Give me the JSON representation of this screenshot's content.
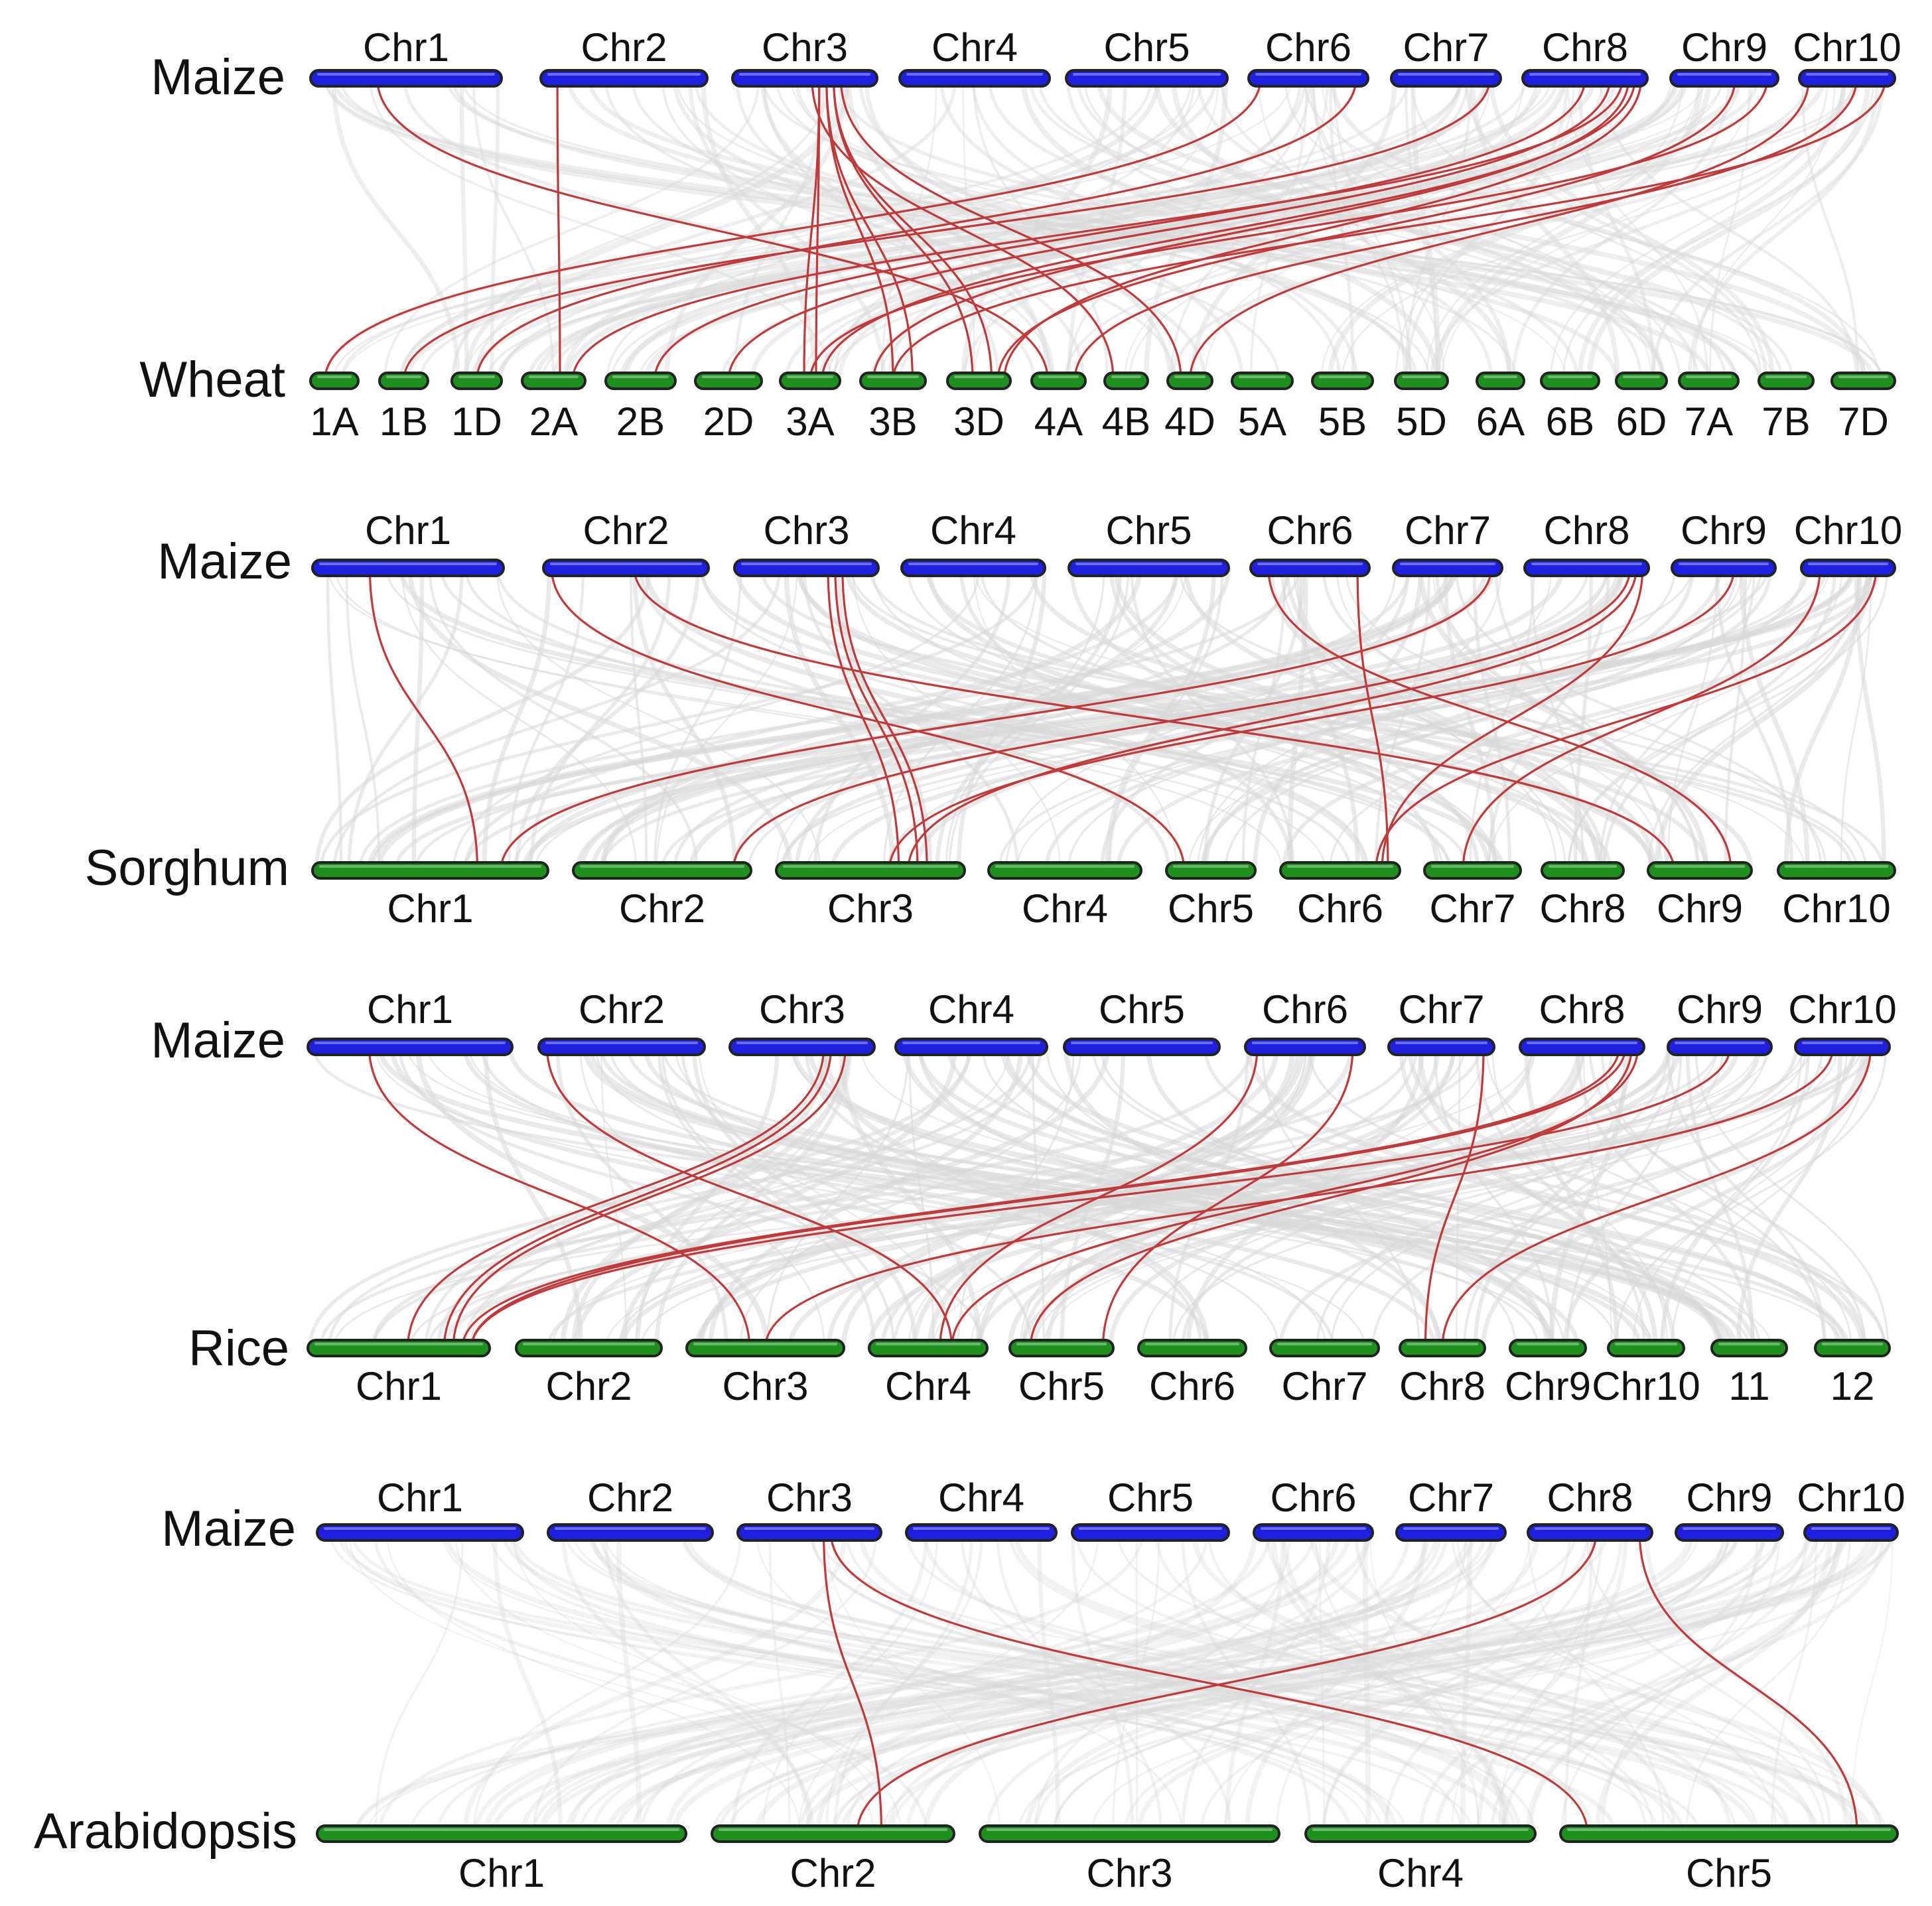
{
  "colors": {
    "maize_bar": "#1f1fe0",
    "other_bar": "#1f8f1f",
    "background_links": "#d9d9d9",
    "highlight_links": "#c0393b"
  },
  "panels": [
    {
      "id": "wheat",
      "top_species": "Maize",
      "bottom_species": "Wheat",
      "top_chromosomes": [
        "Chr1",
        "Chr2",
        "Chr3",
        "Chr4",
        "Chr5",
        "Chr6",
        "Chr7",
        "Chr8",
        "Chr9",
        "Chr10"
      ],
      "bottom_chromosomes": [
        "1A",
        "1B",
        "1D",
        "2A",
        "2B",
        "2D",
        "3A",
        "3B",
        "3D",
        "4A",
        "4B",
        "4D",
        "5A",
        "5B",
        "5D",
        "6A",
        "6B",
        "6D",
        "7A",
        "7B",
        "7D"
      ],
      "highlight_links": [
        [
          "Chr1",
          0.35,
          "4A",
          0.3
        ],
        [
          "Chr2",
          0.1,
          "2A",
          0.6
        ],
        [
          "Chr3",
          0.6,
          "3A",
          0.4
        ],
        [
          "Chr3",
          0.6,
          "3A",
          0.6
        ],
        [
          "Chr3",
          0.65,
          "3B",
          0.5
        ],
        [
          "Chr3",
          0.65,
          "3B",
          0.8
        ],
        [
          "Chr3",
          0.7,
          "3D",
          0.4
        ],
        [
          "Chr3",
          0.7,
          "3D",
          0.7
        ],
        [
          "Chr3",
          0.55,
          "4B",
          0.2
        ],
        [
          "Chr3",
          0.75,
          "4D",
          0.3
        ],
        [
          "Chr6",
          0.1,
          "1A",
          0.3
        ],
        [
          "Chr6",
          0.9,
          "1D",
          0.5
        ],
        [
          "Chr7",
          0.9,
          "1B",
          0.5
        ],
        [
          "Chr8",
          0.5,
          "2B",
          0.7
        ],
        [
          "Chr8",
          0.7,
          "2D",
          0.5
        ],
        [
          "Chr8",
          0.8,
          "2A",
          0.8
        ],
        [
          "Chr8",
          0.9,
          "3A",
          0.7
        ],
        [
          "Chr8",
          0.85,
          "3B",
          0.2
        ],
        [
          "Chr8",
          0.95,
          "3D",
          0.9
        ],
        [
          "Chr9",
          0.6,
          "3D",
          0.8
        ],
        [
          "Chr9",
          0.9,
          "3A",
          0.5
        ],
        [
          "Chr10",
          0.1,
          "4D",
          0.5
        ],
        [
          "Chr10",
          0.6,
          "4A",
          0.8
        ],
        [
          "Chr10",
          0.9,
          "3B",
          0.5
        ]
      ]
    },
    {
      "id": "sorghum",
      "top_species": "Maize",
      "bottom_species": "Sorghum",
      "top_chromosomes": [
        "Chr1",
        "Chr2",
        "Chr3",
        "Chr4",
        "Chr5",
        "Chr6",
        "Chr7",
        "Chr8",
        "Chr9",
        "Chr10"
      ],
      "bottom_chromosomes": [
        "Chr1",
        "Chr2",
        "Chr3",
        "Chr4",
        "Chr5",
        "Chr6",
        "Chr7",
        "Chr8",
        "Chr9",
        "Chr10"
      ],
      "highlight_links": [
        [
          "Chr1",
          0.3,
          "Chr1",
          0.7
        ],
        [
          "Chr2",
          0.05,
          "Chr5",
          0.2
        ],
        [
          "Chr2",
          0.55,
          "Chr9",
          0.25
        ],
        [
          "Chr3",
          0.65,
          "Chr3",
          0.65
        ],
        [
          "Chr3",
          0.7,
          "Chr3",
          0.75
        ],
        [
          "Chr3",
          0.75,
          "Chr3",
          0.8
        ],
        [
          "Chr6",
          0.15,
          "Chr9",
          0.8
        ],
        [
          "Chr6",
          0.9,
          "Chr6",
          0.9
        ],
        [
          "Chr7",
          0.9,
          "Chr1",
          0.8
        ],
        [
          "Chr8",
          0.85,
          "Chr2",
          0.9
        ],
        [
          "Chr8",
          0.9,
          "Chr3",
          0.7
        ],
        [
          "Chr8",
          0.95,
          "Chr6",
          0.85
        ],
        [
          "Chr9",
          0.6,
          "Chr3",
          0.6
        ],
        [
          "Chr10",
          0.2,
          "Chr7",
          0.4
        ],
        [
          "Chr10",
          0.8,
          "Chr6",
          0.8
        ]
      ]
    },
    {
      "id": "rice",
      "top_species": "Maize",
      "bottom_species": "Rice",
      "top_chromosomes": [
        "Chr1",
        "Chr2",
        "Chr3",
        "Chr4",
        "Chr5",
        "Chr6",
        "Chr7",
        "Chr8",
        "Chr9",
        "Chr10"
      ],
      "bottom_chromosomes": [
        "Chr1",
        "Chr2",
        "Chr3",
        "Chr4",
        "Chr5",
        "Chr6",
        "Chr7",
        "Chr8",
        "Chr9",
        "Chr10",
        "11",
        "12"
      ],
      "highlight_links": [
        [
          "Chr1",
          0.3,
          "Chr3",
          0.4
        ],
        [
          "Chr2",
          0.05,
          "Chr4",
          0.7
        ],
        [
          "Chr3",
          0.65,
          "Chr1",
          0.55
        ],
        [
          "Chr3",
          0.7,
          "Chr1",
          0.75
        ],
        [
          "Chr3",
          0.8,
          "Chr1",
          0.8
        ],
        [
          "Chr6",
          0.1,
          "Chr4",
          0.6
        ],
        [
          "Chr6",
          0.9,
          "Chr5",
          0.9
        ],
        [
          "Chr7",
          0.9,
          "Chr8",
          0.3
        ],
        [
          "Chr8",
          0.8,
          "Chr1",
          0.85
        ],
        [
          "Chr8",
          0.85,
          "Chr1",
          0.9
        ],
        [
          "Chr8",
          0.9,
          "Chr5",
          0.2
        ],
        [
          "Chr8",
          0.95,
          "Chr4",
          0.7
        ],
        [
          "Chr9",
          0.6,
          "Chr1",
          0.9
        ],
        [
          "Chr10",
          0.4,
          "Chr3",
          0.5
        ],
        [
          "Chr10",
          0.8,
          "Chr8",
          0.5
        ]
      ]
    },
    {
      "id": "arabidopsis",
      "top_species": "Maize",
      "bottom_species": "Arabidopsis",
      "top_chromosomes": [
        "Chr1",
        "Chr2",
        "Chr3",
        "Chr4",
        "Chr5",
        "Chr6",
        "Chr7",
        "Chr8",
        "Chr9",
        "Chr10"
      ],
      "bottom_chromosomes": [
        "Chr1",
        "Chr2",
        "Chr3",
        "Chr4",
        "Chr5"
      ],
      "highlight_links": [
        [
          "Chr3",
          0.6,
          "Chr2",
          0.7
        ],
        [
          "Chr3",
          0.65,
          "Chr5",
          0.08
        ],
        [
          "Chr8",
          0.55,
          "Chr2",
          0.6
        ],
        [
          "Chr8",
          0.9,
          "Chr5",
          0.88
        ]
      ]
    }
  ]
}
